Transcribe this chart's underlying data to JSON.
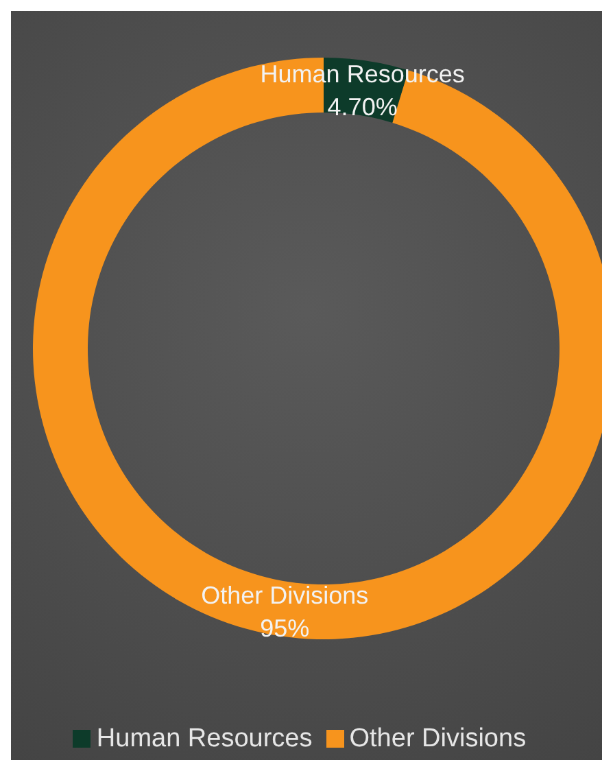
{
  "chart_data": {
    "type": "donut",
    "categories": [
      "Human Resources",
      "Other Divisions"
    ],
    "values": [
      4.7,
      95
    ],
    "value_labels": [
      "4.70%",
      "95%"
    ],
    "colors": [
      "#0d3b2a",
      "#f7941d"
    ],
    "legend": "bottom"
  }
}
